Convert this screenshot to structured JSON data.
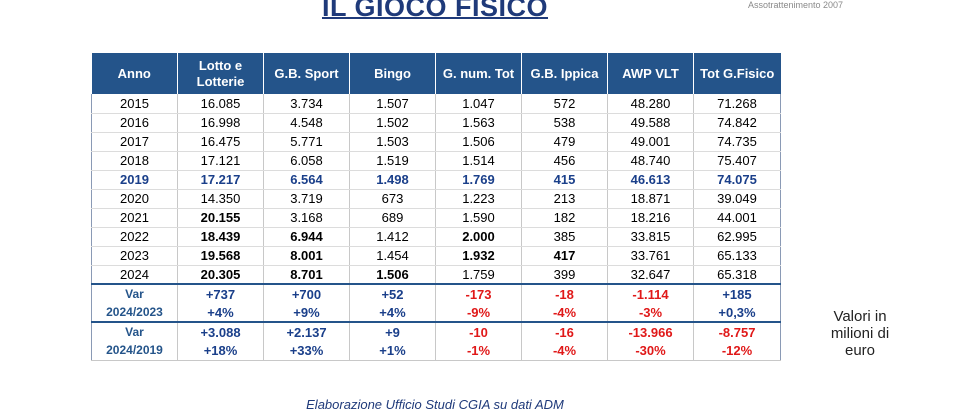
{
  "title": "IL GIOCO FISICO",
  "corner_text": "Assotrattenimento 2007",
  "headers": [
    "Anno",
    "Lotto e Lotterie",
    "G.B. Sport",
    "Bingo",
    "G. num. Tot",
    "G.B. Ippica",
    "AWP VLT",
    "Tot G.Fisico"
  ],
  "rows": [
    {
      "anno": "2015",
      "vals": [
        "16.085",
        "3.734",
        "1.507",
        "1.047",
        "572",
        "48.280",
        "71.268"
      ]
    },
    {
      "anno": "2016",
      "vals": [
        "16.998",
        "4.548",
        "1.502",
        "1.563",
        "538",
        "49.588",
        "74.842"
      ]
    },
    {
      "anno": "2017",
      "vals": [
        "16.475",
        "5.771",
        "1.503",
        "1.506",
        "479",
        "49.001",
        "74.735"
      ]
    },
    {
      "anno": "2018",
      "vals": [
        "17.121",
        "6.058",
        "1.519",
        "1.514",
        "456",
        "48.740",
        "75.407"
      ]
    },
    {
      "anno": "2019",
      "vals": [
        "17.217",
        "6.564",
        "1.498",
        "1.769",
        "415",
        "46.613",
        "74.075"
      ]
    },
    {
      "anno": "2020",
      "vals": [
        "14.350",
        "3.719",
        "673",
        "1.223",
        "213",
        "18.871",
        "39.049"
      ]
    },
    {
      "anno": "2021",
      "vals": [
        "20.155",
        "3.168",
        "689",
        "1.590",
        "182",
        "18.216",
        "44.001"
      ]
    },
    {
      "anno": "2022",
      "vals": [
        "18.439",
        "6.944",
        "1.412",
        "2.000",
        "385",
        "33.815",
        "62.995"
      ]
    },
    {
      "anno": "2023",
      "vals": [
        "19.568",
        "8.001",
        "1.454",
        "1.932",
        "417",
        "33.761",
        "65.133"
      ]
    },
    {
      "anno": "2024",
      "vals": [
        "20.305",
        "8.701",
        "1.506",
        "1.759",
        "399",
        "32.647",
        "65.318"
      ]
    }
  ],
  "var_2024_2023": {
    "label1": "Var",
    "label2": "2024/2023",
    "abs": [
      "+737",
      "+700",
      "+52",
      "-173",
      "-18",
      "-1.114",
      "+185"
    ],
    "pct": [
      "+4%",
      "+9%",
      "+4%",
      "-9%",
      "-4%",
      "-3%",
      "+0,3%"
    ]
  },
  "var_2024_2019": {
    "label1": "Var",
    "label2": "2024/2019",
    "abs": [
      "+3.088",
      "+2.137",
      "+9",
      "-10",
      "-16",
      "-13.966",
      "-8.757"
    ],
    "pct": [
      "+18%",
      "+33%",
      "+1%",
      "-1%",
      "-4%",
      "-30%",
      "-12%"
    ]
  },
  "units_note": "Valori in milioni di euro",
  "footer": "Elaborazione Ufficio Studi CGIA su dati ADM",
  "colors": {
    "header_bg": "#24548a",
    "highlight_blue": "#1a3f8a",
    "negative_red": "#e01818",
    "title_blue": "#1f3a7a"
  }
}
